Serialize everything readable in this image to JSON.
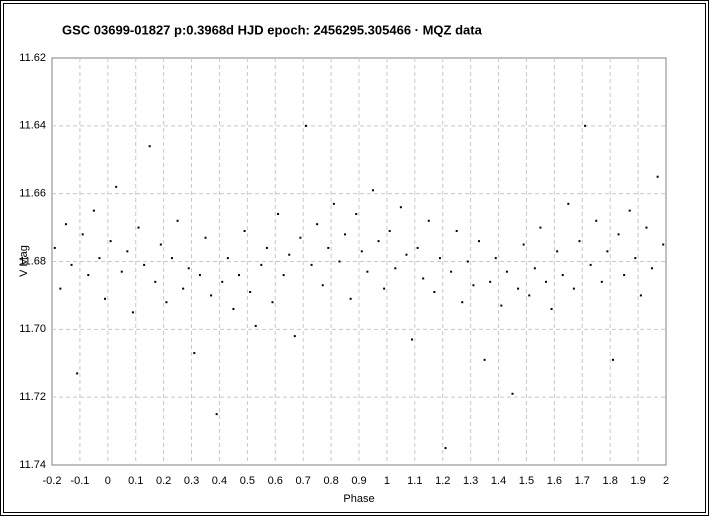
{
  "chart_data": {
    "type": "scatter",
    "title": "GSC 03699-01827  p:0.3968d  HJD epoch: 2456295.305466  · MQZ data",
    "xlabel": "Phase",
    "ylabel": "V Mag",
    "xlim": [
      -0.2,
      2
    ],
    "ylim": [
      11.62,
      11.74
    ],
    "invert_y": true,
    "grid": true,
    "color": "#000000",
    "xticks": [
      -0.2,
      -0.1,
      0,
      0.1,
      0.2,
      0.3,
      0.4,
      0.5,
      0.6,
      0.7,
      0.8,
      0.9,
      1,
      1.1,
      1.2,
      1.3,
      1.4,
      1.5,
      1.6,
      1.7,
      1.8,
      1.9,
      2
    ],
    "yticks": [
      11.62,
      11.64,
      11.66,
      11.68,
      {
        "value": 11.7,
        "label": "11.70"
      },
      11.72,
      11.74
    ],
    "x": [
      -0.19,
      -0.17,
      -0.15,
      -0.13,
      -0.11,
      -0.09,
      -0.07,
      -0.05,
      -0.03,
      -0.01,
      0.01,
      0.03,
      0.05,
      0.07,
      0.09,
      0.11,
      0.13,
      0.15,
      0.17,
      0.19,
      0.21,
      0.23,
      0.25,
      0.27,
      0.29,
      0.31,
      0.33,
      0.35,
      0.37,
      0.39,
      0.41,
      0.43,
      0.45,
      0.47,
      0.49,
      0.51,
      0.53,
      0.55,
      0.57,
      0.59,
      0.61,
      0.63,
      0.65,
      0.67,
      0.69,
      0.71,
      0.73,
      0.75,
      0.77,
      0.79,
      0.81,
      0.83,
      0.85,
      0.87,
      0.89,
      0.91,
      0.93,
      0.95,
      0.97,
      0.99,
      1.01,
      1.03,
      1.05,
      1.07,
      1.09,
      1.11,
      1.13,
      1.15,
      1.17,
      1.19,
      1.21,
      1.23,
      1.25,
      1.27,
      1.29,
      1.31,
      1.33,
      1.35,
      1.37,
      1.39,
      1.41,
      1.43,
      1.45,
      1.47,
      1.49,
      1.51,
      1.53,
      1.55,
      1.57,
      1.59,
      1.61,
      1.63,
      1.65,
      1.67,
      1.69,
      1.71,
      1.73,
      1.75,
      1.77,
      1.79,
      1.81,
      1.83,
      1.85,
      1.87,
      1.89,
      1.91,
      1.93,
      1.95,
      1.97,
      1.99
    ],
    "values": [
      11.676,
      11.688,
      11.669,
      11.681,
      11.713,
      11.672,
      11.684,
      11.665,
      11.679,
      11.691,
      11.674,
      11.658,
      11.683,
      11.677,
      11.695,
      11.67,
      11.681,
      11.646,
      11.686,
      11.675,
      11.692,
      11.679,
      11.668,
      11.688,
      11.682,
      11.707,
      11.684,
      11.673,
      11.69,
      11.725,
      11.686,
      11.679,
      11.694,
      11.684,
      11.671,
      11.689,
      11.699,
      11.681,
      11.676,
      11.692,
      11.666,
      11.684,
      11.678,
      11.702,
      11.673,
      11.64,
      11.681,
      11.669,
      11.687,
      11.676,
      11.663,
      11.68,
      11.672,
      11.691,
      11.666,
      11.677,
      11.683,
      11.659,
      11.674,
      11.688,
      11.671,
      11.682,
      11.664,
      11.678,
      11.703,
      11.676,
      11.685,
      11.668,
      11.689,
      11.679,
      11.735,
      11.683,
      11.671,
      11.692,
      11.68,
      11.687,
      11.674,
      11.709,
      11.686,
      11.679,
      11.693,
      11.683,
      11.719,
      11.688,
      11.675,
      11.69,
      11.682,
      11.67,
      11.686,
      11.694,
      11.677,
      11.684,
      11.663,
      11.688,
      11.674,
      11.64,
      11.681,
      11.668,
      11.686,
      11.677,
      11.709,
      11.672,
      11.684,
      11.665,
      11.679,
      11.69,
      11.67,
      11.682,
      11.655,
      11.675
    ]
  }
}
